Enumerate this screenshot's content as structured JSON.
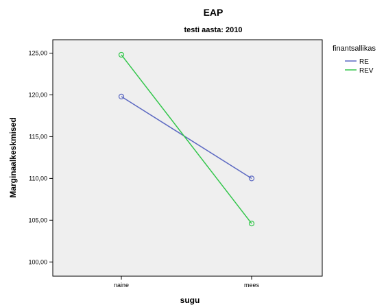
{
  "chart_data": {
    "type": "line",
    "title": "EAP",
    "subtitle": "testi aasta: 2010",
    "xlabel": "sugu",
    "ylabel": "Marginaalkeskmised",
    "categories": [
      "naine",
      "mees"
    ],
    "y_ticks": [
      "100,00",
      "105,00",
      "110,00",
      "115,00",
      "120,00",
      "125,00"
    ],
    "y_tick_values": [
      100,
      105,
      110,
      115,
      120,
      125
    ],
    "ylim": [
      98.3,
      126.6
    ],
    "legend_title": "finantsallikas",
    "legend_position": "top-right",
    "grid": false,
    "series": [
      {
        "name": "RE",
        "values": [
          119.8,
          110.0
        ],
        "color": "#5c69c2"
      },
      {
        "name": "REV",
        "values": [
          124.8,
          104.6
        ],
        "color": "#33c64b"
      }
    ],
    "plot_background": "#efefef"
  }
}
